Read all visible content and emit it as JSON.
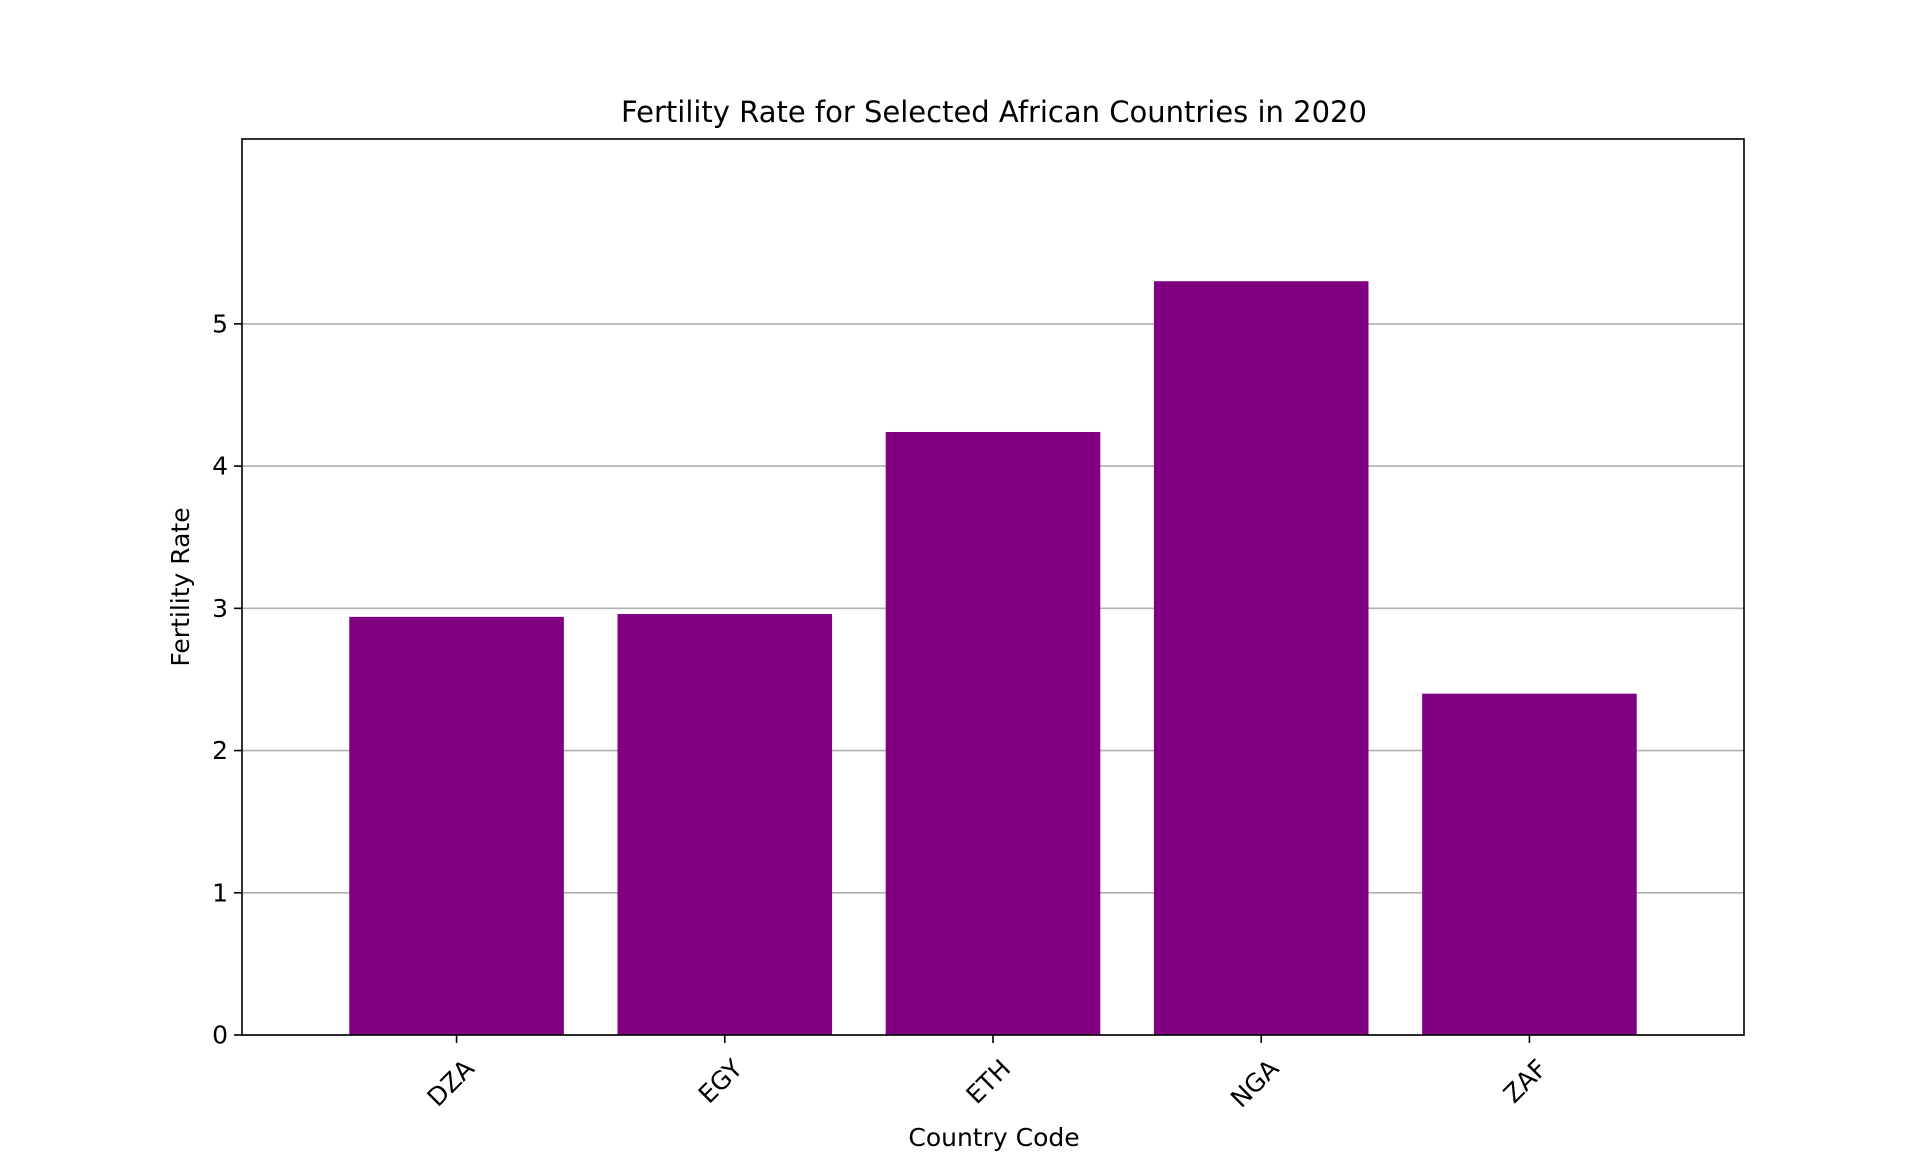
{
  "chart_data": {
    "type": "bar",
    "title": "Fertility Rate for Selected African Countries in 2020",
    "xlabel": "Country Code",
    "ylabel": "Fertility Rate",
    "categories": [
      "DZA",
      "EGY",
      "ETH",
      "NGA",
      "ZAF"
    ],
    "values": [
      2.94,
      2.96,
      4.24,
      5.3,
      2.4
    ],
    "ylim": [
      0,
      6.3
    ],
    "yticks": [
      0,
      1,
      2,
      3,
      4,
      5
    ],
    "grid": "horizontal",
    "xtick_rotation_degrees": 45,
    "bar_color": "#800080"
  }
}
